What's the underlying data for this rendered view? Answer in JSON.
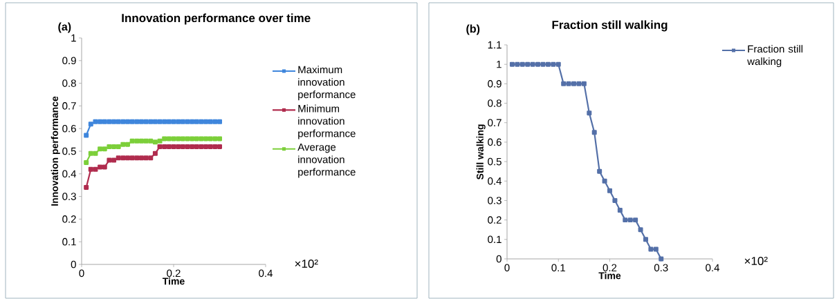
{
  "chart_data": [
    {
      "type": "line",
      "title": "Innovation performance over time",
      "xlabel": "Time",
      "ylabel": "Innovation performance",
      "annotations": [
        "(a)",
        "×10²"
      ],
      "xlim": [
        0,
        0.4
      ],
      "xticks": [
        0,
        0.2,
        0.4
      ],
      "ylim": [
        0,
        1
      ],
      "yticks": [
        0,
        0.1,
        0.2,
        0.3,
        0.4,
        0.5,
        0.6,
        0.7,
        0.8,
        0.9,
        1
      ],
      "legend": "right",
      "marker": "square",
      "series": [
        {
          "name": "Maximum innovation performance",
          "color": "#3f86dc",
          "x": [
            0.01,
            0.02,
            0.03,
            0.04,
            0.05,
            0.06,
            0.07,
            0.08,
            0.09,
            0.1,
            0.11,
            0.12,
            0.13,
            0.14,
            0.15,
            0.16,
            0.17,
            0.18,
            0.19,
            0.2,
            0.21,
            0.22,
            0.23,
            0.24,
            0.25,
            0.26,
            0.27,
            0.28,
            0.29,
            0.3
          ],
          "values": [
            0.57,
            0.62,
            0.63,
            0.63,
            0.63,
            0.63,
            0.63,
            0.63,
            0.63,
            0.63,
            0.63,
            0.63,
            0.63,
            0.63,
            0.63,
            0.63,
            0.63,
            0.63,
            0.63,
            0.63,
            0.63,
            0.63,
            0.63,
            0.63,
            0.63,
            0.63,
            0.63,
            0.63,
            0.63,
            0.63
          ]
        },
        {
          "name": "Minimum innovation performance",
          "color": "#b02c4e",
          "x": [
            0.01,
            0.02,
            0.03,
            0.04,
            0.05,
            0.06,
            0.07,
            0.08,
            0.09,
            0.1,
            0.11,
            0.12,
            0.13,
            0.14,
            0.15,
            0.16,
            0.17,
            0.18,
            0.19,
            0.2,
            0.21,
            0.22,
            0.23,
            0.24,
            0.25,
            0.26,
            0.27,
            0.28,
            0.29,
            0.3
          ],
          "values": [
            0.34,
            0.42,
            0.42,
            0.43,
            0.43,
            0.46,
            0.46,
            0.47,
            0.47,
            0.47,
            0.47,
            0.47,
            0.47,
            0.47,
            0.47,
            0.49,
            0.52,
            0.52,
            0.52,
            0.52,
            0.52,
            0.52,
            0.52,
            0.52,
            0.52,
            0.52,
            0.52,
            0.52,
            0.52,
            0.52
          ]
        },
        {
          "name": "Average innovation performance",
          "color": "#7ccf3a",
          "x": [
            0.01,
            0.02,
            0.03,
            0.04,
            0.05,
            0.06,
            0.07,
            0.08,
            0.09,
            0.1,
            0.11,
            0.12,
            0.13,
            0.14,
            0.15,
            0.16,
            0.17,
            0.18,
            0.19,
            0.2,
            0.21,
            0.22,
            0.23,
            0.24,
            0.25,
            0.26,
            0.27,
            0.28,
            0.29,
            0.3
          ],
          "values": [
            0.45,
            0.49,
            0.49,
            0.51,
            0.51,
            0.52,
            0.52,
            0.52,
            0.53,
            0.53,
            0.545,
            0.545,
            0.545,
            0.545,
            0.545,
            0.54,
            0.545,
            0.555,
            0.555,
            0.555,
            0.555,
            0.555,
            0.555,
            0.555,
            0.555,
            0.555,
            0.555,
            0.555,
            0.555,
            0.555
          ]
        }
      ]
    },
    {
      "type": "line",
      "title": "Fraction still walking",
      "xlabel": "Time",
      "ylabel": "Still walking",
      "annotations": [
        "(b)",
        "×10²"
      ],
      "xlim": [
        0,
        0.4
      ],
      "xticks": [
        0,
        0.1,
        0.2,
        0.3,
        0.4
      ],
      "ylim": [
        0,
        1.1
      ],
      "yticks": [
        0,
        0.1,
        0.2,
        0.3,
        0.4,
        0.5,
        0.6,
        0.7,
        0.8,
        0.9,
        1,
        1.1
      ],
      "legend": "top right",
      "marker": "square",
      "series": [
        {
          "name": "Fraction still walking",
          "color": "#5470a8",
          "x": [
            0.01,
            0.02,
            0.03,
            0.04,
            0.05,
            0.06,
            0.07,
            0.08,
            0.09,
            0.1,
            0.11,
            0.12,
            0.13,
            0.14,
            0.15,
            0.16,
            0.17,
            0.18,
            0.19,
            0.2,
            0.21,
            0.22,
            0.23,
            0.24,
            0.25,
            0.26,
            0.27,
            0.28,
            0.29,
            0.3
          ],
          "values": [
            1,
            1,
            1,
            1,
            1,
            1,
            1,
            1,
            1,
            1,
            0.9,
            0.9,
            0.9,
            0.9,
            0.9,
            0.75,
            0.65,
            0.45,
            0.4,
            0.35,
            0.3,
            0.25,
            0.2,
            0.2,
            0.2,
            0.15,
            0.1,
            0.05,
            0.05,
            0
          ]
        }
      ]
    }
  ]
}
